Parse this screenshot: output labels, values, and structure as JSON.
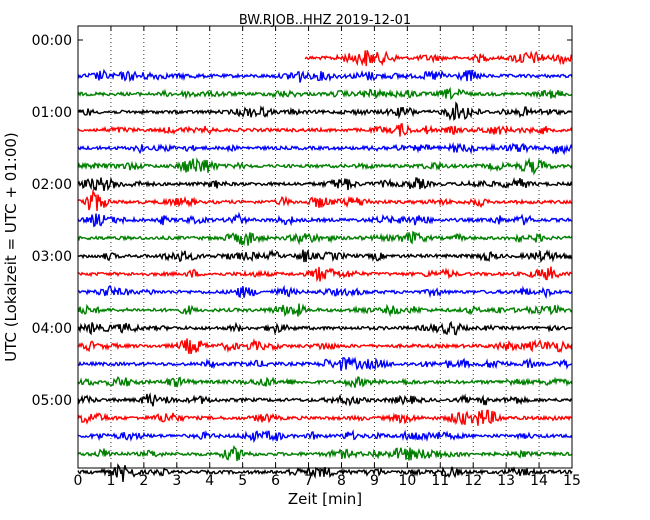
{
  "chart_data": {
    "type": "line",
    "title": "BW.RJOB..HHZ 2019-12-01",
    "xlabel": "Zeit  [min]",
    "ylabel": "UTC (Lokalzeit = UTC + 01:00)",
    "xlim": [
      0,
      15
    ],
    "x_ticks": [
      "0",
      "1",
      "2",
      "3",
      "4",
      "5",
      "6",
      "7",
      "8",
      "9",
      "10",
      "11",
      "12",
      "13",
      "14",
      "15"
    ],
    "y_ticks": [
      "00:00",
      "01:00",
      "02:00",
      "03:00",
      "04:00",
      "05:00"
    ],
    "minutes_per_row": 15,
    "first_row_start_min": 6.9,
    "grid": "vertical dotted at each minute",
    "color_cycle": [
      "#ff0000",
      "#0000ff",
      "#008000",
      "#000000"
    ],
    "series": [
      {
        "row_start": "00:00",
        "start_min": 6.9
      },
      {
        "row_start": "00:15"
      },
      {
        "row_start": "00:30"
      },
      {
        "row_start": "00:45"
      },
      {
        "row_start": "01:00"
      },
      {
        "row_start": "01:15"
      },
      {
        "row_start": "01:30"
      },
      {
        "row_start": "01:45"
      },
      {
        "row_start": "02:00"
      },
      {
        "row_start": "02:15"
      },
      {
        "row_start": "02:30"
      },
      {
        "row_start": "02:45"
      },
      {
        "row_start": "03:00"
      },
      {
        "row_start": "03:15"
      },
      {
        "row_start": "03:30"
      },
      {
        "row_start": "03:45"
      },
      {
        "row_start": "04:00"
      },
      {
        "row_start": "04:15"
      },
      {
        "row_start": "04:30"
      },
      {
        "row_start": "04:45"
      },
      {
        "row_start": "05:00"
      },
      {
        "row_start": "05:15"
      },
      {
        "row_start": "05:30"
      },
      {
        "row_start": "05:45"
      }
    ]
  }
}
